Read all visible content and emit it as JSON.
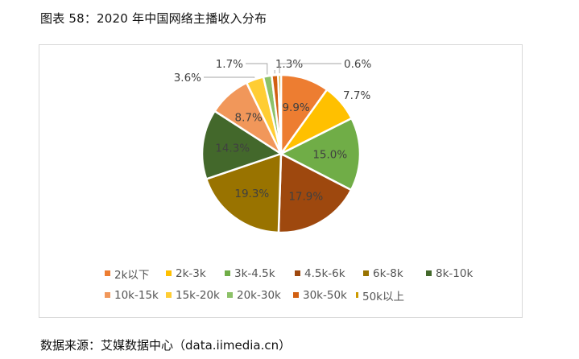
{
  "header": {
    "title": "图表 58：2020 年中国网络主播收入分布"
  },
  "footer": {
    "source": "数据来源：艾媒数据中心（data.iimedia.cn）"
  },
  "chart_data": {
    "type": "pie",
    "title": "2020 年中国网络主播收入分布",
    "categories": [
      "2k以下",
      "2k-3k",
      "3k-4.5k",
      "4.5k-6k",
      "6k-8k",
      "8k-10k",
      "10k-15k",
      "15k-20k",
      "20k-30k",
      "30k-50k",
      "50k以上"
    ],
    "values": [
      9.9,
      7.7,
      15.0,
      17.9,
      19.3,
      14.3,
      8.7,
      3.6,
      1.7,
      1.3,
      0.6
    ],
    "labels": [
      "9.9%",
      "7.7%",
      "15.0%",
      "17.9%",
      "19.3%",
      "14.3%",
      "8.7%",
      "3.6%",
      "1.7%",
      "1.3%",
      "0.6%"
    ],
    "colors": [
      "#ED7D31",
      "#FFC000",
      "#70AD47",
      "#9E480E",
      "#997300",
      "#43682B",
      "#F1975A",
      "#FFCD33",
      "#8CC168",
      "#D26012",
      "#CC9A00"
    ],
    "unit": "%",
    "start_angle_deg": 0,
    "direction": "clockwise",
    "legend_position": "bottom"
  },
  "legend": {
    "rows": [
      [
        {
          "label": "2k以下",
          "color": "#ED7D31"
        },
        {
          "label": "2k-3k",
          "color": "#FFC000"
        },
        {
          "label": "3k-4.5k",
          "color": "#70AD47"
        },
        {
          "label": "4.5k-6k",
          "color": "#9E480E"
        },
        {
          "label": "6k-8k",
          "color": "#997300"
        },
        {
          "label": "8k-10k",
          "color": "#43682B"
        }
      ],
      [
        {
          "label": "10k-15k",
          "color": "#F1975A"
        },
        {
          "label": "15k-20k",
          "color": "#FFCD33"
        },
        {
          "label": "20k-30k",
          "color": "#8CC168"
        },
        {
          "label": "30k-50k",
          "color": "#D26012"
        },
        {
          "label": "50k以上",
          "color": "#CC9A00"
        }
      ]
    ]
  }
}
